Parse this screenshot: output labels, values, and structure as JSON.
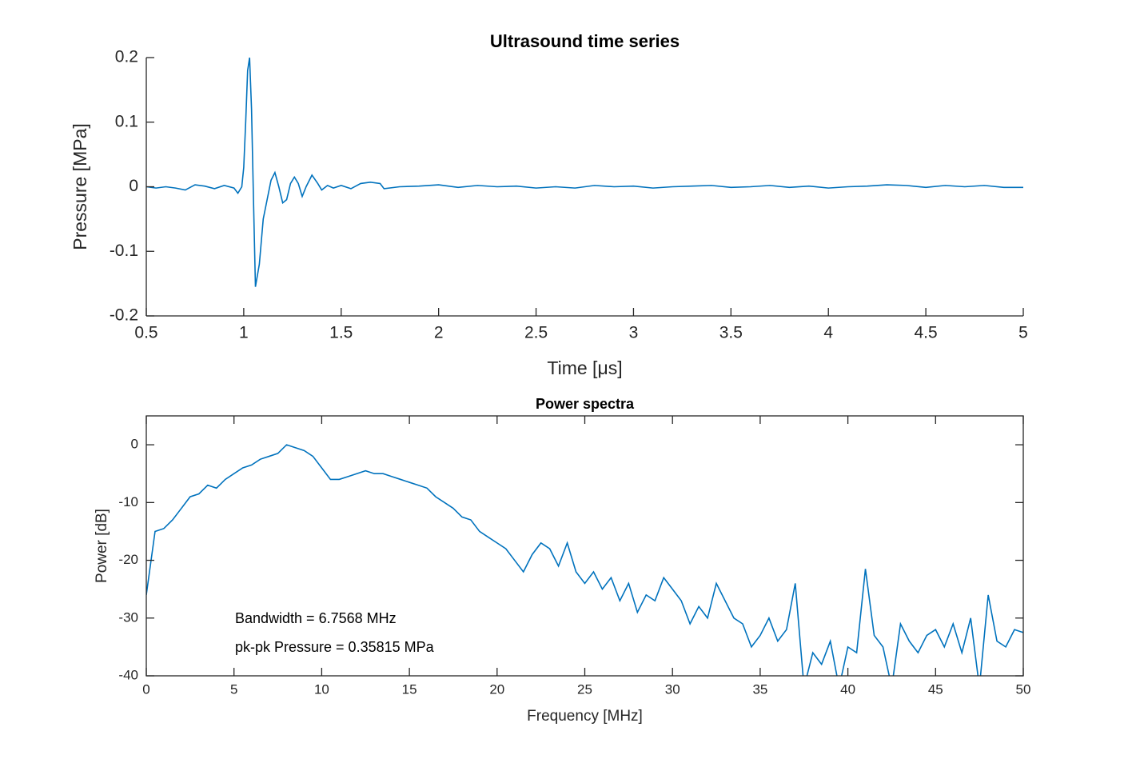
{
  "chart_data": [
    {
      "type": "line",
      "title": "Ultrasound time series",
      "xlabel": "Time [μs]",
      "ylabel": "Pressure [MPa]",
      "x": [
        0.5,
        0.55,
        0.6,
        0.65,
        0.7,
        0.75,
        0.8,
        0.85,
        0.9,
        0.95,
        0.97,
        0.99,
        1.0,
        1.01,
        1.02,
        1.03,
        1.04,
        1.05,
        1.06,
        1.08,
        1.1,
        1.12,
        1.14,
        1.16,
        1.18,
        1.2,
        1.22,
        1.24,
        1.26,
        1.28,
        1.3,
        1.32,
        1.35,
        1.38,
        1.4,
        1.43,
        1.46,
        1.5,
        1.55,
        1.6,
        1.65,
        1.7,
        1.72,
        1.8,
        1.9,
        2.0,
        2.1,
        2.2,
        2.3,
        2.4,
        2.5,
        2.6,
        2.7,
        2.8,
        2.9,
        3.0,
        3.1,
        3.2,
        3.3,
        3.4,
        3.5,
        3.6,
        3.7,
        3.8,
        3.9,
        4.0,
        4.1,
        4.2,
        4.3,
        4.4,
        4.5,
        4.6,
        4.7,
        4.8,
        4.9,
        5.0
      ],
      "values": [
        0,
        -0.002,
        0,
        -0.002,
        -0.005,
        0.003,
        0.001,
        -0.003,
        0.002,
        -0.002,
        -0.01,
        0,
        0.03,
        0.1,
        0.18,
        0.2,
        0.12,
        -0.02,
        -0.155,
        -0.12,
        -0.05,
        -0.02,
        0.01,
        0.022,
        0,
        -0.025,
        -0.02,
        0.005,
        0.015,
        0.005,
        -0.015,
        0,
        0.018,
        0.005,
        -0.005,
        0.002,
        -0.002,
        0.002,
        -0.003,
        0.005,
        0.007,
        0.005,
        -0.003,
        0,
        0.001,
        0.003,
        -0.001,
        0.002,
        0,
        0.001,
        -0.002,
        0,
        -0.002,
        0.002,
        0,
        0.001,
        -0.002,
        0,
        0.001,
        0.002,
        -0.001,
        0,
        0.002,
        -0.001,
        0.001,
        -0.002,
        0,
        0.001,
        0.003,
        0.002,
        -0.001,
        0.002,
        0,
        0.002,
        -0.001,
        -0.001
      ],
      "color": "#0072bd",
      "xlim": [
        0.5,
        5
      ],
      "ylim": [
        -0.2,
        0.2
      ],
      "xticks": [
        0.5,
        1,
        1.5,
        2,
        2.5,
        3,
        3.5,
        4,
        4.5,
        5
      ],
      "yticks": [
        -0.2,
        -0.1,
        0,
        0.1,
        0.2
      ],
      "box": false
    },
    {
      "type": "line",
      "title": "Power spectra",
      "xlabel": "Frequency [MHz]",
      "ylabel": "Power [dB]",
      "x": [
        0,
        0.5,
        1,
        1.5,
        2,
        2.5,
        3,
        3.5,
        4,
        4.5,
        5,
        5.5,
        6,
        6.5,
        7,
        7.5,
        8,
        8.5,
        9,
        9.5,
        10,
        10.5,
        11,
        11.5,
        12,
        12.5,
        13,
        13.5,
        14,
        14.5,
        15,
        15.5,
        16,
        16.5,
        17,
        17.5,
        18,
        18.5,
        19,
        19.5,
        20,
        20.5,
        21,
        21.5,
        22,
        22.5,
        23,
        23.5,
        24,
        24.5,
        25,
        25.5,
        26,
        26.5,
        27,
        27.5,
        28,
        28.5,
        29,
        29.5,
        30,
        30.5,
        31,
        31.5,
        32,
        32.5,
        33,
        33.5,
        34,
        34.5,
        35,
        35.5,
        36,
        36.5,
        37,
        37.5,
        38,
        38.5,
        39,
        39.5,
        40,
        40.5,
        41,
        41.5,
        42,
        42.5,
        43,
        43.5,
        44,
        44.5,
        45,
        45.5,
        46,
        46.5,
        47,
        47.5,
        48,
        48.5,
        49,
        49.5,
        50
      ],
      "values": [
        -26,
        -15,
        -14.5,
        -13,
        -11,
        -9,
        -8.5,
        -7,
        -7.5,
        -6,
        -5,
        -4,
        -3.5,
        -2.5,
        -2,
        -1.5,
        0,
        -0.5,
        -1,
        -2,
        -4,
        -6,
        -6,
        -5.5,
        -5,
        -4.5,
        -5,
        -5,
        -5.5,
        -6,
        -6.5,
        -7,
        -7.5,
        -9,
        -10,
        -11,
        -12.5,
        -13,
        -15,
        -16,
        -17,
        -18,
        -20,
        -22,
        -19,
        -17,
        -18,
        -21,
        -17,
        -22,
        -24,
        -22,
        -25,
        -23,
        -27,
        -24,
        -29,
        -26,
        -27,
        -23,
        -25,
        -27,
        -31,
        -28,
        -30,
        -24,
        -27,
        -30,
        -31,
        -35,
        -33,
        -30,
        -34,
        -32,
        -24,
        -42,
        -36,
        -38,
        -34,
        -42,
        -35,
        -36,
        -21.5,
        -33,
        -35,
        -42,
        -31,
        -34,
        -36,
        -33,
        -32,
        -35,
        -31,
        -36,
        -30,
        -42,
        -26,
        -34,
        -35,
        -32,
        -32.5
      ],
      "color": "#0072bd",
      "xlim": [
        0,
        50
      ],
      "ylim": [
        -40,
        5
      ],
      "xticks": [
        0,
        5,
        10,
        15,
        20,
        25,
        30,
        35,
        40,
        45,
        50
      ],
      "yticks": [
        -40,
        -30,
        -20,
        -10,
        0
      ],
      "box": true,
      "annotations": [
        "Bandwidth = 6.7568 MHz",
        "pk-pk Pressure = 0.35815 MPa"
      ]
    }
  ]
}
